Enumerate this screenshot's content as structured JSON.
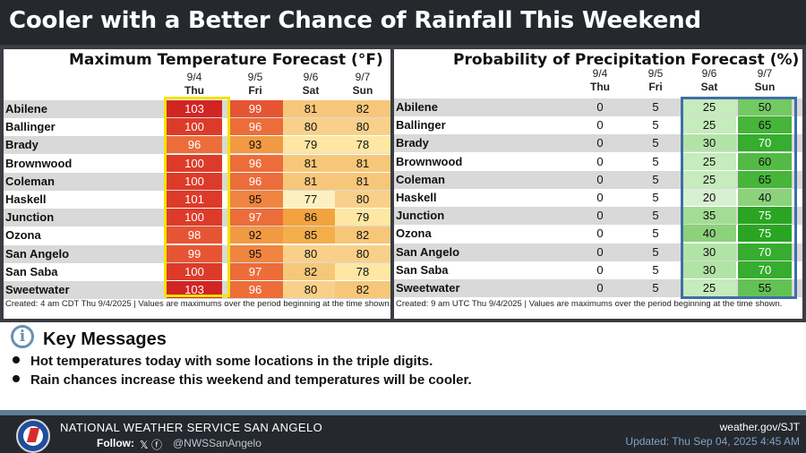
{
  "banner": {
    "title": "Cooler with a Better Chance of Rainfall This Weekend"
  },
  "temp": {
    "title": "Maximum Temperature Forecast (°F)",
    "columns": [
      {
        "date": "9/4",
        "day": "Thu"
      },
      {
        "date": "9/5",
        "day": "Fri"
      },
      {
        "date": "9/6",
        "day": "Sat"
      },
      {
        "date": "9/7",
        "day": "Sun"
      }
    ],
    "rows": [
      {
        "city": "Abilene",
        "values": [
          "103",
          "99",
          "81",
          "82"
        ]
      },
      {
        "city": "Ballinger",
        "values": [
          "100",
          "96",
          "80",
          "80"
        ]
      },
      {
        "city": "Brady",
        "values": [
          "96",
          "93",
          "79",
          "78"
        ]
      },
      {
        "city": "Brownwood",
        "values": [
          "100",
          "96",
          "81",
          "81"
        ]
      },
      {
        "city": "Coleman",
        "values": [
          "100",
          "96",
          "81",
          "81"
        ]
      },
      {
        "city": "Haskell",
        "values": [
          "101",
          "95",
          "77",
          "80"
        ]
      },
      {
        "city": "Junction",
        "values": [
          "100",
          "97",
          "86",
          "79"
        ]
      },
      {
        "city": "Ozona",
        "values": [
          "98",
          "92",
          "85",
          "82"
        ]
      },
      {
        "city": "San Angelo",
        "values": [
          "99",
          "95",
          "80",
          "80"
        ]
      },
      {
        "city": "San Saba",
        "values": [
          "100",
          "97",
          "82",
          "78"
        ]
      },
      {
        "city": "Sweetwater",
        "values": [
          "103",
          "96",
          "80",
          "82"
        ]
      }
    ],
    "caption": "Created: 4 am CDT Thu 9/4/2025  |  Values are maximums over the period beginning at the time shown."
  },
  "pop": {
    "title": "Probability of Precipitation Forecast (%)",
    "columns": [
      {
        "date": "9/4",
        "day": "Thu"
      },
      {
        "date": "9/5",
        "day": "Fri"
      },
      {
        "date": "9/6",
        "day": "Sat"
      },
      {
        "date": "9/7",
        "day": "Sun"
      }
    ],
    "rows": [
      {
        "city": "Abilene",
        "values": [
          "0",
          "5",
          "25",
          "50"
        ]
      },
      {
        "city": "Ballinger",
        "values": [
          "0",
          "5",
          "25",
          "65"
        ]
      },
      {
        "city": "Brady",
        "values": [
          "0",
          "5",
          "30",
          "70"
        ]
      },
      {
        "city": "Brownwood",
        "values": [
          "0",
          "5",
          "25",
          "60"
        ]
      },
      {
        "city": "Coleman",
        "values": [
          "0",
          "5",
          "25",
          "65"
        ]
      },
      {
        "city": "Haskell",
        "values": [
          "0",
          "5",
          "20",
          "40"
        ]
      },
      {
        "city": "Junction",
        "values": [
          "0",
          "5",
          "35",
          "75"
        ]
      },
      {
        "city": "Ozona",
        "values": [
          "0",
          "5",
          "40",
          "75"
        ]
      },
      {
        "city": "San Angelo",
        "values": [
          "0",
          "5",
          "30",
          "70"
        ]
      },
      {
        "city": "San Saba",
        "values": [
          "0",
          "5",
          "30",
          "70"
        ]
      },
      {
        "city": "Sweetwater",
        "values": [
          "0",
          "5",
          "25",
          "55"
        ]
      }
    ],
    "caption": "Created: 9 am UTC Thu 9/4/2025  |  Values are maximums over the period beginning at the time shown."
  },
  "key_messages": {
    "title": "Key Messages",
    "icon": "info-icon",
    "bullets": [
      "Hot temperatures today with some locations in the triple digits.",
      "Rain chances increase this weekend and temperatures will be cooler."
    ]
  },
  "footer": {
    "org": "NATIONAL WEATHER SERVICE SAN ANGELO",
    "follow_label": "Follow:",
    "social_icons": "𝕏 ⓕ",
    "handle": "@NWSSanAngelo",
    "website": "weather.gov/SJT",
    "updated": "Updated: Thu Sep 04, 2025 4:45 AM"
  },
  "colors": {
    "banner_bg": "#25282d",
    "temp_highlight_border": "#f2e500",
    "pop_highlight_border": "#3f6fa6",
    "hot_red": "#d62a28",
    "warm_orange": "#f2a341",
    "light_yellow": "#fde79a",
    "rain_green": "#2fb52f",
    "light_green": "#cfeec9",
    "updated_text": "#7fa3c7"
  }
}
